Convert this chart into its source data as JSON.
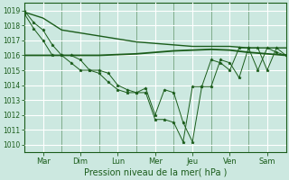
{
  "xlabel": "Pression niveau de la mer( hPa )",
  "background_color": "#cce8e0",
  "grid_color": "#ffffff",
  "line_color": "#1a5c1a",
  "ylim": [
    1009.5,
    1019.5
  ],
  "yticks": [
    1010,
    1011,
    1012,
    1013,
    1014,
    1015,
    1016,
    1017,
    1018,
    1019
  ],
  "day_labels": [
    "Mar",
    "Dim",
    "Lun",
    "Mer",
    "Jeu",
    "Ven",
    "Sam"
  ],
  "day_positions": [
    0.5,
    1.5,
    2.5,
    3.5,
    4.5,
    5.5,
    6.5
  ],
  "day_lines": [
    0,
    1,
    2,
    3,
    4,
    5,
    6,
    7
  ],
  "xlim": [
    0,
    7
  ],
  "smooth1_x": [
    0.0,
    0.5,
    1.0,
    1.5,
    2.0,
    2.5,
    3.0,
    3.5,
    4.0,
    4.5,
    5.0,
    5.5,
    6.0,
    6.5,
    7.0
  ],
  "smooth1_y": [
    1018.9,
    1018.5,
    1017.7,
    1017.5,
    1017.3,
    1017.1,
    1016.9,
    1016.8,
    1016.7,
    1016.6,
    1016.6,
    1016.6,
    1016.5,
    1016.5,
    1016.5
  ],
  "smooth2_x": [
    0.0,
    0.5,
    1.0,
    1.5,
    2.0,
    2.5,
    3.0,
    3.5,
    4.0,
    4.5,
    5.0,
    5.5,
    6.0,
    6.5,
    7.0
  ],
  "smooth2_y": [
    1016.0,
    1016.0,
    1016.0,
    1016.0,
    1016.0,
    1016.05,
    1016.1,
    1016.2,
    1016.3,
    1016.35,
    1016.4,
    1016.35,
    1016.2,
    1016.1,
    1016.0
  ],
  "jagged1_x": [
    0.0,
    0.25,
    0.5,
    0.75,
    1.0,
    1.25,
    1.5,
    1.75,
    2.0,
    2.25,
    2.5,
    2.75,
    3.0,
    3.25,
    3.5,
    3.75,
    4.0,
    4.25,
    4.5,
    4.75,
    5.0,
    5.25,
    5.5,
    5.75,
    6.0,
    6.25,
    6.5,
    6.75,
    7.0
  ],
  "jagged1_y": [
    1019.0,
    1018.2,
    1017.7,
    1016.7,
    1016.0,
    1016.0,
    1015.7,
    1015.0,
    1015.0,
    1014.8,
    1014.0,
    1013.7,
    1013.5,
    1013.8,
    1012.0,
    1013.7,
    1013.5,
    1011.5,
    1010.2,
    1013.9,
    1013.9,
    1015.7,
    1015.5,
    1014.5,
    1016.5,
    1016.5,
    1015.0,
    1016.5,
    1016.0
  ],
  "jagged2_x": [
    0.0,
    0.25,
    0.5,
    0.75,
    1.0,
    1.25,
    1.5,
    1.75,
    2.0,
    2.25,
    2.5,
    2.75,
    3.0,
    3.25,
    3.5,
    3.75,
    4.0,
    4.25,
    4.5,
    4.75,
    5.0,
    5.25,
    5.5,
    5.75,
    6.0,
    6.25,
    6.5,
    6.75,
    7.0
  ],
  "jagged2_y": [
    1018.8,
    1017.8,
    1017.0,
    1016.0,
    1016.0,
    1015.5,
    1015.0,
    1015.0,
    1014.8,
    1014.2,
    1013.7,
    1013.5,
    1013.5,
    1013.5,
    1011.7,
    1011.7,
    1011.5,
    1010.2,
    1013.9,
    1013.9,
    1015.7,
    1015.5,
    1015.0,
    1016.5,
    1016.5,
    1015.0,
    1016.5,
    1016.2,
    1016.0
  ]
}
